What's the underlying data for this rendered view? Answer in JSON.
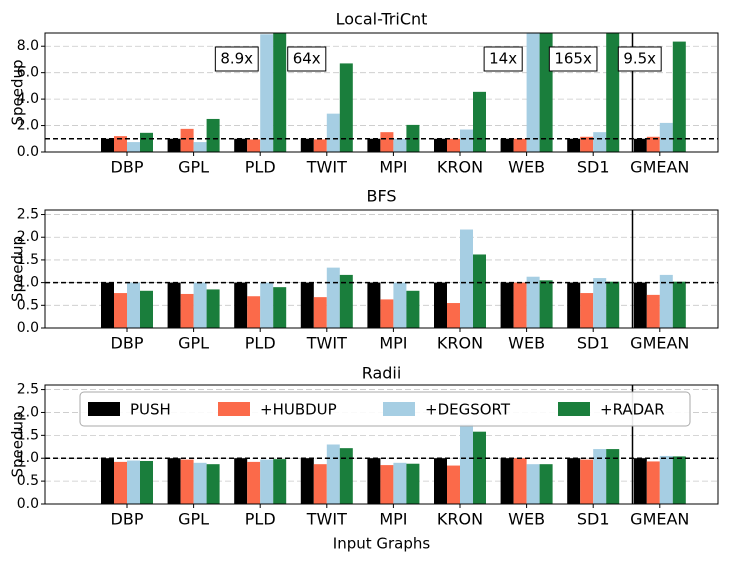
{
  "chart_data": [
    {
      "type": "bar",
      "title": "Local-TriCnt",
      "y_label": "Speedup",
      "categories": [
        "DBP",
        "GPL",
        "PLD",
        "TWIT",
        "MPI",
        "KRON",
        "WEB",
        "SD1",
        "GMEAN"
      ],
      "ylim": [
        0,
        9
      ],
      "yticks": [
        {
          "value": 0,
          "label": "0.0"
        },
        {
          "value": 2,
          "label": "2.0"
        },
        {
          "value": 4,
          "label": "4.0"
        },
        {
          "value": 6,
          "label": "6.0"
        },
        {
          "value": 8,
          "label": "8.0"
        }
      ],
      "grid": true,
      "hline": 1,
      "series": [
        {
          "color": "#000000",
          "values": [
            1,
            1,
            1,
            1,
            1,
            1,
            1,
            1,
            1
          ]
        },
        {
          "color": "#fb6a4a",
          "values": [
            1.2,
            1.75,
            0.95,
            0.95,
            1.5,
            1.0,
            1.0,
            1.15,
            1.15
          ]
        },
        {
          "color": "#a6cee3",
          "values": [
            0.75,
            0.75,
            8.9,
            2.9,
            1.0,
            1.7,
            14,
            1.5,
            2.2
          ],
          "value_labels": [
            null,
            null,
            "8.9x",
            null,
            null,
            null,
            "14x",
            null,
            null
          ]
        },
        {
          "color": "#1a7e3c",
          "values": [
            1.45,
            2.5,
            64,
            6.7,
            2.05,
            4.55,
            165,
            9.5,
            8.35
          ],
          "value_labels": [
            null,
            null,
            "64x",
            null,
            null,
            null,
            "165x",
            "9.5x",
            null
          ]
        }
      ]
    },
    {
      "type": "bar",
      "title": "BFS",
      "y_label": "Speedup",
      "categories": [
        "DBP",
        "GPL",
        "PLD",
        "TWIT",
        "MPI",
        "KRON",
        "WEB",
        "SD1",
        "GMEAN"
      ],
      "ylim": [
        0,
        2.6
      ],
      "yticks": [
        {
          "value": 0,
          "label": "0.0"
        },
        {
          "value": 0.5,
          "label": "0.5"
        },
        {
          "value": 1,
          "label": "1.0"
        },
        {
          "value": 1.5,
          "label": "1.5"
        },
        {
          "value": 2,
          "label": "2.0"
        },
        {
          "value": 2.5,
          "label": "2.5"
        }
      ],
      "grid": true,
      "hline": 1,
      "series": [
        {
          "color": "#000000",
          "values": [
            1,
            1,
            1,
            1,
            1,
            1,
            1,
            1,
            1
          ]
        },
        {
          "color": "#fb6a4a",
          "values": [
            0.77,
            0.75,
            0.7,
            0.68,
            0.63,
            0.55,
            1.0,
            0.77,
            0.73
          ]
        },
        {
          "color": "#a6cee3",
          "values": [
            1.0,
            1.0,
            1.0,
            1.33,
            1.0,
            2.17,
            1.13,
            1.1,
            1.17
          ]
        },
        {
          "color": "#1a7e3c",
          "values": [
            0.82,
            0.85,
            0.9,
            1.17,
            0.82,
            1.62,
            1.05,
            1.02,
            1.02
          ]
        }
      ]
    },
    {
      "type": "bar",
      "title": "Radii",
      "y_label": "Speedup",
      "x_label": "Input Graphs",
      "categories": [
        "DBP",
        "GPL",
        "PLD",
        "TWIT",
        "MPI",
        "KRON",
        "WEB",
        "SD1",
        "GMEAN"
      ],
      "ylim": [
        0,
        2.6
      ],
      "yticks": [
        {
          "value": 0,
          "label": "0.0"
        },
        {
          "value": 0.5,
          "label": "0.5"
        },
        {
          "value": 1,
          "label": "1.0"
        },
        {
          "value": 1.5,
          "label": "1.5"
        },
        {
          "value": 2,
          "label": "2.0"
        },
        {
          "value": 2.5,
          "label": "2.5"
        }
      ],
      "grid": true,
      "hline": 1,
      "legend": "upper left",
      "series": [
        {
          "name": "PUSH",
          "color": "#000000",
          "values": [
            1,
            1,
            1,
            1,
            1,
            1,
            1,
            1,
            1
          ]
        },
        {
          "name": "+HUBDUP",
          "color": "#fb6a4a",
          "values": [
            0.92,
            0.97,
            0.92,
            0.87,
            0.85,
            0.84,
            1.0,
            0.97,
            0.93
          ]
        },
        {
          "name": "+DEGSORT",
          "color": "#a6cee3",
          "values": [
            0.95,
            0.9,
            0.97,
            1.3,
            0.9,
            1.75,
            0.87,
            1.2,
            1.05
          ]
        },
        {
          "name": "+RADAR",
          "color": "#1a7e3c",
          "values": [
            0.94,
            0.87,
            0.98,
            1.22,
            0.88,
            1.58,
            0.87,
            1.2,
            1.04
          ]
        }
      ]
    }
  ]
}
